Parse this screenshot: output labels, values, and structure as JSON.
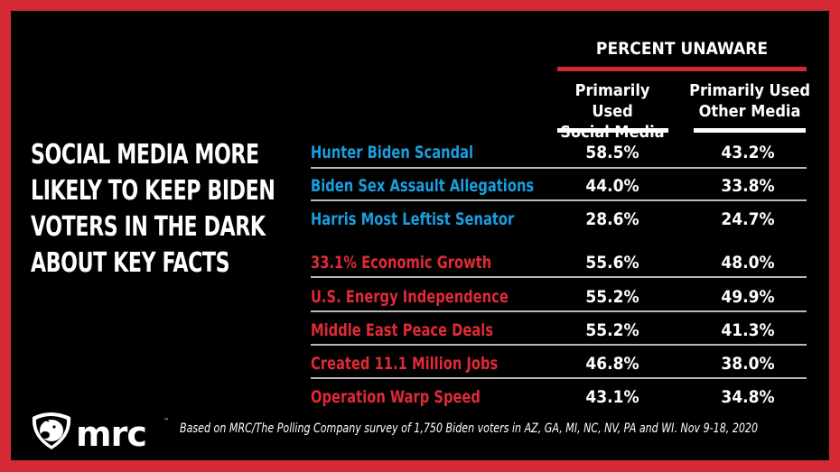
{
  "headline": "SOCIAL MEDIA MORE LIKELY TO KEEP BIDEN VOTERS IN THE DARK ABOUT KEY FACTS",
  "headline_lines": [
    "SOCIAL MEDIA MORE",
    "LIKELY TO KEEP BIDEN",
    "VOTERS IN THE DARK",
    "ABOUT KEY FACTS"
  ],
  "table": {
    "group_title": "PERCENT UNAWARE",
    "columns": [
      {
        "line1": "Primarily Used",
        "line2": "Social Media"
      },
      {
        "line1": "Primarily Used",
        "line2": "Other Media"
      }
    ],
    "rows": [
      {
        "label": "Hunter Biden Scandal",
        "group": "blue",
        "social": "58.5%",
        "other": "43.2%"
      },
      {
        "label": "Biden Sex Assault Allegations",
        "group": "blue",
        "social": "44.0%",
        "other": "33.8%"
      },
      {
        "label": "Harris Most Leftist Senator",
        "group": "blue",
        "social": "28.6%",
        "other": "24.7%"
      },
      {
        "label": "33.1% Economic Growth",
        "group": "red",
        "social": "55.6%",
        "other": "48.0%"
      },
      {
        "label": "U.S. Energy Independence",
        "group": "red",
        "social": "55.2%",
        "other": "49.9%"
      },
      {
        "label": "Middle East Peace Deals",
        "group": "red",
        "social": "55.2%",
        "other": "41.3%"
      },
      {
        "label": "Created 11.1 Million Jobs",
        "group": "red",
        "social": "46.8%",
        "other": "38.0%"
      },
      {
        "label": "Operation Warp Speed",
        "group": "red",
        "social": "43.1%",
        "other": "34.8%"
      }
    ]
  },
  "colors": {
    "border": "#d52a35",
    "background": "#000000",
    "blue_label": "#1a9ee0",
    "red_label": "#e02a37",
    "text": "#ffffff"
  },
  "logo": {
    "text": "mrc",
    "icon": "bulldog-shield-icon",
    "tm": "™"
  },
  "footnote": "Based on MRC/The Polling Company survey of 1,750 Biden voters in AZ, GA, MI, NC, NV, PA and WI. Nov 9-18, 2020"
}
